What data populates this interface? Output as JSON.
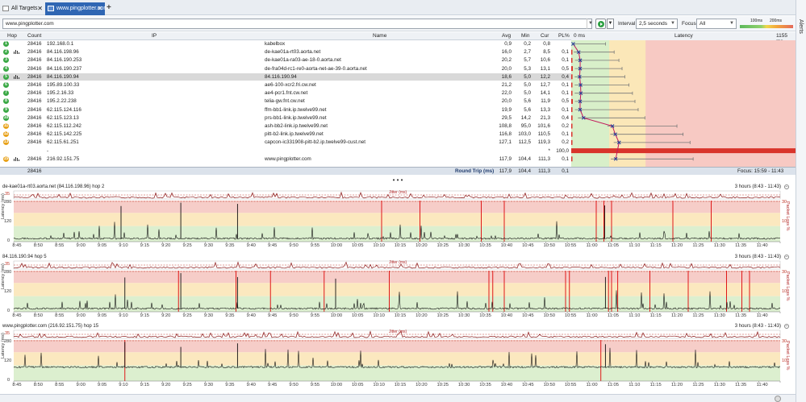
{
  "tabs": [
    {
      "label": "All Targets",
      "close": "✕"
    },
    {
      "label": "www.pingplotter.com",
      "close": "✕"
    }
  ],
  "add_tab": "+",
  "alerts_label": "Alerts",
  "toolbar": {
    "address": "www.pingplotter.com",
    "interval_label": "Interval",
    "interval_value": "2,5 seconds",
    "focus_label": "Focus",
    "focus_value": "All",
    "scale_100": "100ms",
    "scale_200": "200ms"
  },
  "table": {
    "headers": {
      "hop": "Hop",
      "count": "Count",
      "ip": "IP",
      "name": "Name",
      "avg": "Avg",
      "min": "Min",
      "cur": "Cur",
      "pl": "PL%",
      "zero_ms": "0 ms",
      "latency": "Latency",
      "max_ms": "1155 ms"
    },
    "rows": [
      {
        "hop": "1",
        "count": "28416",
        "ip": "192.168.0.1",
        "name": "kabelbox",
        "avg": "0,9",
        "min": "0,2",
        "cur": "0,8",
        "pl": "",
        "color": "#3aa845",
        "bars": false
      },
      {
        "hop": "2",
        "count": "28416",
        "ip": "84.116.198.96",
        "name": "de-kae01a-rt03.aorta.net",
        "avg": "16,0",
        "min": "2,7",
        "cur": "8,5",
        "pl": "0,1",
        "color": "#3aa845",
        "bars": true
      },
      {
        "hop": "3",
        "count": "28416",
        "ip": "84.116.190.253",
        "name": "de-kae01a-ra03-ae-18-0.aorta.net",
        "avg": "20,2",
        "min": "5,7",
        "cur": "10,6",
        "pl": "0,1",
        "color": "#3aa845",
        "bars": false
      },
      {
        "hop": "4",
        "count": "28416",
        "ip": "84.116.190.237",
        "name": "de-fra04d-rc1-re0-aorta-net-ae-39-0.aorta.net",
        "avg": "20,0",
        "min": "5,3",
        "cur": "13,1",
        "pl": "0,5",
        "color": "#3aa845",
        "bars": false
      },
      {
        "hop": "5",
        "count": "28416",
        "ip": "84.116.190.94",
        "name": "84.116.190.94",
        "avg": "18,6",
        "min": "5,0",
        "cur": "12,2",
        "pl": "0,4",
        "color": "#3aa845",
        "bars": true
      },
      {
        "hop": "6",
        "count": "28416",
        "ip": "195.89.100.33",
        "name": "ae6-100-xcr2.fri.cw.net",
        "avg": "21,2",
        "min": "5,0",
        "cur": "12,7",
        "pl": "0,1",
        "color": "#3aa845",
        "bars": false
      },
      {
        "hop": "7",
        "count": "28416",
        "ip": "195.2.16.33",
        "name": "ae4-pcr1.fnt.cw.net",
        "avg": "22,0",
        "min": "5,0",
        "cur": "14,1",
        "pl": "0,1",
        "color": "#3aa845",
        "bars": false
      },
      {
        "hop": "8",
        "count": "28416",
        "ip": "195.2.22.238",
        "name": "telia-gw.fnt.cw.net",
        "avg": "20,0",
        "min": "5,6",
        "cur": "11,9",
        "pl": "0,5",
        "color": "#3aa845",
        "bars": false
      },
      {
        "hop": "9",
        "count": "28416",
        "ip": "62.115.124.116",
        "name": "ffm-bb1-link.ip.twelve99.net",
        "avg": "19,9",
        "min": "5,6",
        "cur": "13,3",
        "pl": "0,1",
        "color": "#3aa845",
        "bars": false
      },
      {
        "hop": "10",
        "count": "28416",
        "ip": "62.115.123.13",
        "name": "prs-bb1-link.ip.twelve99.net",
        "avg": "29,5",
        "min": "14,2",
        "cur": "21,3",
        "pl": "0,4",
        "color": "#3aa845",
        "bars": false
      },
      {
        "hop": "11",
        "count": "28416",
        "ip": "62.115.112.242",
        "name": "ash-bb2-link.ip.twelve99.net",
        "avg": "108,8",
        "min": "95,0",
        "cur": "101,6",
        "pl": "0,2",
        "color": "#e8a21a",
        "bars": false
      },
      {
        "hop": "12",
        "count": "28416",
        "ip": "62.115.142.225",
        "name": "pitt-b2-link.ip.twelve99.net",
        "avg": "116,8",
        "min": "103,0",
        "cur": "110,5",
        "pl": "0,1",
        "color": "#e8a21a",
        "bars": false
      },
      {
        "hop": "13",
        "count": "28416",
        "ip": "62.115.61.251",
        "name": "capcon-ic331908-pitt-b2.ip.twelve99-cust.net",
        "avg": "127,1",
        "min": "112,5",
        "cur": "119,3",
        "pl": "0,2",
        "color": "#e8a21a",
        "bars": false
      },
      {
        "hop": "",
        "count": "",
        "ip": "-",
        "name": "",
        "avg": "",
        "min": "",
        "cur": "*",
        "pl": "100,0",
        "color": "",
        "bars": false
      },
      {
        "hop": "15",
        "count": "28416",
        "ip": "216.92.151.75",
        "name": "www.pingplotter.com",
        "avg": "117,9",
        "min": "104,4",
        "cur": "111,3",
        "pl": "0,1",
        "color": "#e8a21a",
        "bars": true
      }
    ],
    "total": {
      "count": "28416",
      "label": "Round Trip (ms)",
      "avg": "117,9",
      "min": "104,4",
      "cur": "111,3",
      "pl": "0,1",
      "focus": "Focus: 15:59 - 11:43"
    }
  },
  "timelines": [
    {
      "title": "de-kae01a-rt03.aorta.net (84.116.198.96) hop 2",
      "range": "3 hours (8:43 - 11:43)",
      "range_icon": "−"
    },
    {
      "title": "84.116.190.94 hop 5",
      "range": "3 hours (8:43 - 11:43)",
      "range_icon": "−"
    },
    {
      "title": "www.pingplotter.com (216.92.151.75) hop 15",
      "range": "3 hours (8:43 - 11:43)",
      "range_icon": "−"
    }
  ],
  "timeline_labels": {
    "jitter": "Jitter (ms)",
    "latency": "Latency (ms)",
    "loss": "Packet Loss %",
    "y_top": "280",
    "y_mid": "120",
    "y_zero": "0",
    "jitter_max": "35",
    "loss_30": "30",
    "loss_10": "10"
  },
  "x_axis": [
    "8:45",
    "8:50",
    "8:55",
    "9:00",
    "9:05",
    "9:10",
    "9:15",
    "9:20",
    "9:25",
    "9:30",
    "9:35",
    "9:40",
    "9:45",
    "9:50",
    "9:55",
    "10:00",
    "10:05",
    "10:10",
    "10:15",
    "10:20",
    "10:25",
    "10:30",
    "10:35",
    "10:40",
    "10:45",
    "10:50",
    "10:55",
    "11:00",
    "11:05",
    "11:10",
    "11:15",
    "11:20",
    "11:25",
    "11:30",
    "11:35",
    "11:40"
  ],
  "splitter": "• • •"
}
